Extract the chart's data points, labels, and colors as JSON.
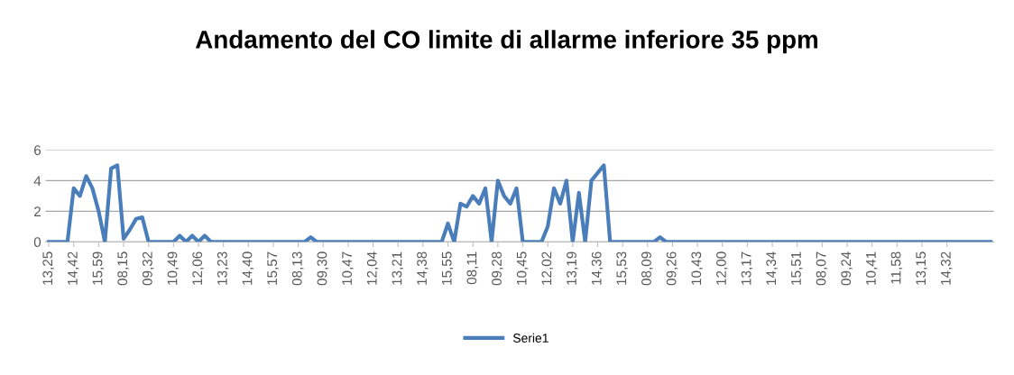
{
  "chart_data": {
    "type": "line",
    "title": "Andamento del CO limite di allarme inferiore 35 ppm",
    "categories": [
      "13,25",
      null,
      null,
      null,
      "14,42",
      null,
      null,
      null,
      "15,59",
      null,
      null,
      null,
      "08,15",
      null,
      null,
      null,
      "09,32",
      null,
      null,
      null,
      "10,49",
      null,
      null,
      null,
      "12,06",
      null,
      null,
      null,
      "13,23",
      null,
      null,
      null,
      "14,40",
      null,
      null,
      null,
      "15,57",
      null,
      null,
      null,
      "08,13",
      null,
      null,
      null,
      "09,30",
      null,
      null,
      null,
      "10,47",
      null,
      null,
      null,
      "12,04",
      null,
      null,
      null,
      "13,21",
      null,
      null,
      null,
      "14,38",
      null,
      null,
      null,
      "15,55",
      null,
      null,
      null,
      "08,11",
      null,
      null,
      null,
      "09,28",
      null,
      null,
      null,
      "10,45",
      null,
      null,
      null,
      "12,02",
      null,
      null,
      null,
      "13,19",
      null,
      null,
      null,
      "14,36",
      null,
      null,
      null,
      "15,53",
      null,
      null,
      null,
      "08,09",
      null,
      null,
      null,
      "09,26",
      null,
      null,
      null,
      "10,43",
      null,
      null,
      null,
      "12,00",
      null,
      null,
      null,
      "13,17",
      null,
      null,
      null,
      "14,34",
      null,
      null,
      null,
      "15,51",
      null,
      null,
      null,
      "08,07",
      null,
      null,
      null,
      "09,24",
      null,
      null,
      null,
      "10,41",
      null,
      null,
      null,
      "11,58",
      null,
      null,
      null,
      "13,15",
      null,
      null,
      null,
      "14,32",
      null,
      null,
      null,
      null,
      null,
      null,
      null
    ],
    "series": [
      {
        "name": "Serie1",
        "color": "#4a7ebb",
        "values": [
          0,
          0,
          0,
          0,
          3.5,
          3,
          4.3,
          3.5,
          2,
          0,
          4.8,
          5,
          0.2,
          0.8,
          1.5,
          1.6,
          0,
          0,
          0,
          0,
          0,
          0.4,
          0,
          0.4,
          0,
          0.4,
          0,
          0,
          0,
          0,
          0,
          0,
          0,
          0,
          0,
          0,
          0,
          0,
          0,
          0,
          0,
          0,
          0.3,
          0,
          0,
          0,
          0,
          0,
          0,
          0,
          0,
          0,
          0,
          0,
          0,
          0,
          0,
          0,
          0,
          0,
          0,
          0,
          0,
          0,
          1.2,
          0,
          2.5,
          2.3,
          3,
          2.5,
          3.5,
          0,
          4,
          3,
          2.5,
          3.5,
          0,
          0,
          0,
          0,
          1,
          3.5,
          2.5,
          4,
          0,
          3.2,
          0,
          4,
          4.5,
          5,
          0,
          0,
          0,
          0,
          0,
          0,
          0,
          0,
          0.3,
          0,
          0,
          0,
          0,
          0,
          0,
          0,
          0,
          0,
          0,
          0,
          0,
          0,
          0,
          0,
          0,
          0,
          0,
          0,
          0,
          0,
          0,
          0,
          0,
          0,
          0,
          0,
          0,
          0,
          0,
          0,
          0,
          0,
          0,
          0,
          0,
          0,
          0,
          0,
          0,
          0,
          0,
          0,
          0,
          0,
          0,
          0,
          0,
          0,
          0,
          0,
          0,
          0
        ]
      }
    ],
    "ylim": [
      0,
      6
    ],
    "yticks": [
      0,
      2,
      4,
      6
    ],
    "grid": "y",
    "legend": "bottom",
    "marker": "none",
    "line_style": "solid"
  }
}
